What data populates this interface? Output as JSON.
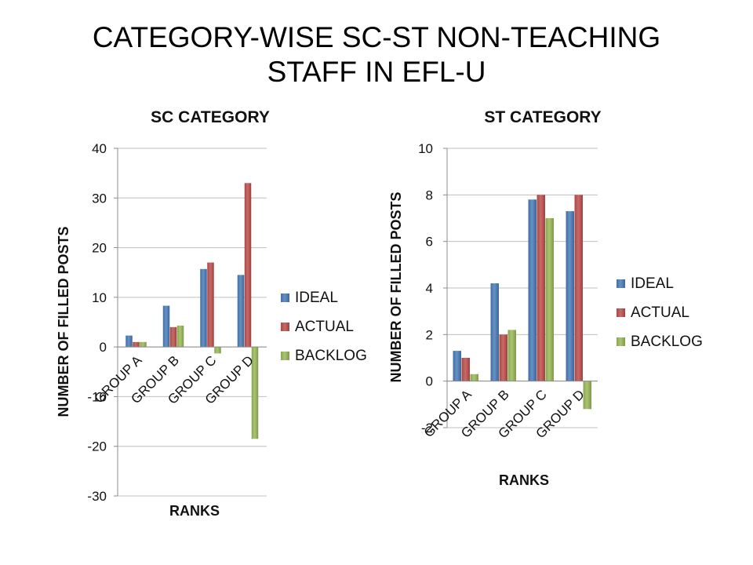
{
  "slide": {
    "title_line1": "CATEGORY-WISE SC-ST NON-TEACHING",
    "title_line2": "STAFF IN EFL-U"
  },
  "colors": {
    "IDEAL": "#4a7ebb",
    "ACTUAL": "#c0504d",
    "BACKLOG": "#9bbb59",
    "grid": "#bfbfbf"
  },
  "chart_data": [
    {
      "type": "bar",
      "title": "SC  CATEGORY",
      "xlabel": "RANKS",
      "ylabel": "NUMBER OF FILLED POSTS",
      "categories": [
        "GROUP A",
        "GROUP B",
        "GROUP C",
        "GROUP D"
      ],
      "series": [
        {
          "name": "IDEAL",
          "values": [
            2.3,
            8.3,
            15.7,
            14.5
          ]
        },
        {
          "name": "ACTUAL",
          "values": [
            1,
            4,
            17,
            33
          ]
        },
        {
          "name": "BACKLOG",
          "values": [
            1,
            4.3,
            -1.3,
            -18.5
          ]
        }
      ],
      "ylim": [
        -30,
        40
      ],
      "yticks": [
        -30,
        -20,
        -10,
        0,
        10,
        20,
        30,
        40
      ],
      "grid": true,
      "legend": "right"
    },
    {
      "type": "bar",
      "title": "ST CATEGORY",
      "xlabel": "RANKS",
      "ylabel": "NUMBER OF FILLED POSTS",
      "categories": [
        "GROUP A",
        "GROUP B",
        "GROUP C",
        "GROUP D"
      ],
      "series": [
        {
          "name": "IDEAL",
          "values": [
            1.3,
            4.2,
            7.8,
            7.3
          ]
        },
        {
          "name": "ACTUAL",
          "values": [
            1,
            2,
            8,
            8
          ]
        },
        {
          "name": "BACKLOG",
          "values": [
            0.3,
            2.2,
            7,
            -1.2
          ]
        }
      ],
      "ylim": [
        -2,
        10
      ],
      "yticks": [
        -2,
        0,
        2,
        4,
        6,
        8,
        10
      ],
      "grid": true,
      "legend": "right"
    }
  ]
}
